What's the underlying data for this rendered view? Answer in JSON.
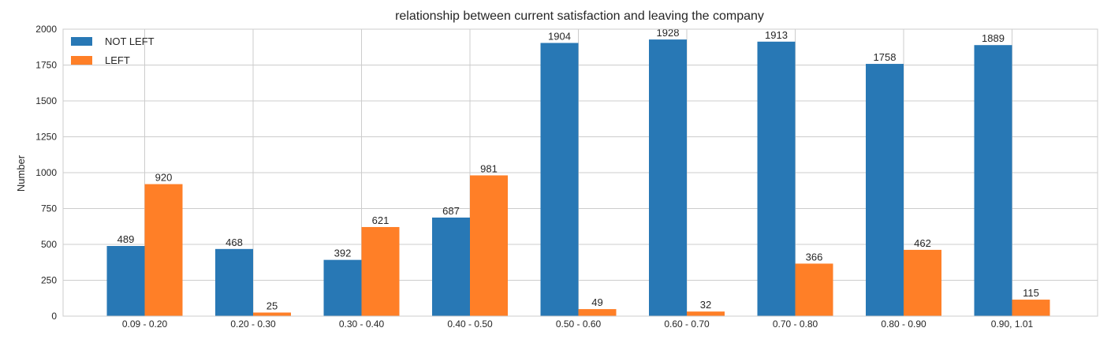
{
  "chart_data": {
    "type": "bar",
    "title": "relationship between current satisfaction and leaving the company",
    "xlabel": "",
    "ylabel": "Number",
    "categories": [
      "0.09 - 0.20",
      "0.20 - 0.30",
      "0.30 - 0.40",
      "0.40 - 0.50",
      "0.50 - 0.60",
      "0.60 - 0.70",
      "0.70 - 0.80",
      "0.80 - 0.90",
      "0.90, 1.01"
    ],
    "series": [
      {
        "name": "NOT LEFT",
        "color": "#2878b5",
        "values": [
          489,
          468,
          392,
          687,
          1904,
          1928,
          1913,
          1758,
          1889
        ]
      },
      {
        "name": "LEFT",
        "color": "#ff7f27",
        "values": [
          920,
          25,
          621,
          981,
          49,
          32,
          366,
          462,
          115
        ]
      }
    ],
    "ylim": [
      0,
      2000
    ],
    "yticks": [
      0,
      250,
      500,
      750,
      1000,
      1250,
      1500,
      1750,
      2000
    ],
    "grid": true,
    "legend_position": "top-left",
    "data_labels": true
  }
}
